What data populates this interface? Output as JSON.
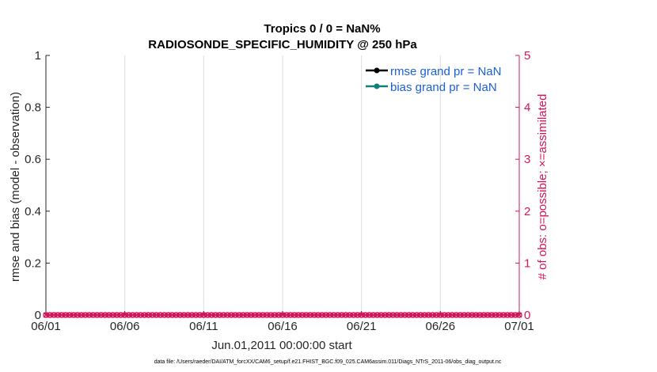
{
  "chart_data": {
    "type": "line",
    "title": "Tropics 0 / 0 = NaN%",
    "subtitle": "RADIOSONDE_SPECIFIC_HUMIDITY @ 250 hPa",
    "xlabel": "Jun.01,2011 00:00:00 start",
    "ylabel": "rmse and bias (model - observation)",
    "ylabel_right": "# of obs: o=possible; ×=assimilated",
    "x_ticks": [
      "06/01",
      "06/06",
      "06/11",
      "06/16",
      "06/21",
      "06/26",
      "07/01"
    ],
    "xlim": [
      "06/01",
      "07/01"
    ],
    "y_ticks": [
      "0",
      "0.2",
      "0.4",
      "0.6",
      "0.8",
      "1"
    ],
    "ylim": [
      0,
      1
    ],
    "y_right_ticks": [
      "0",
      "1",
      "2",
      "3",
      "4",
      "5"
    ],
    "ylim_right": [
      0,
      5
    ],
    "grid": true,
    "legend_position": "top-right",
    "series": [
      {
        "name": "rmse grand pr = NaN",
        "color": "#000000",
        "marker": "circle",
        "values": []
      },
      {
        "name": "bias grand pr = NaN",
        "color": "#0f7f7f",
        "marker": "circle",
        "values": []
      }
    ],
    "obs_count_series": {
      "color": "#d4145a",
      "marker": "o and ×",
      "count_per_day": 4,
      "days": 30,
      "values_possible": 0,
      "values_assimilated": 0
    },
    "footnote": "data file: /Users/raeder/DAI/ATM_forcXX/CAM6_setup/f.e21.FHIST_BGC.f09_025.CAM6assim.011/Diags_NTrS_2011-06/obs_diag_output.nc"
  }
}
